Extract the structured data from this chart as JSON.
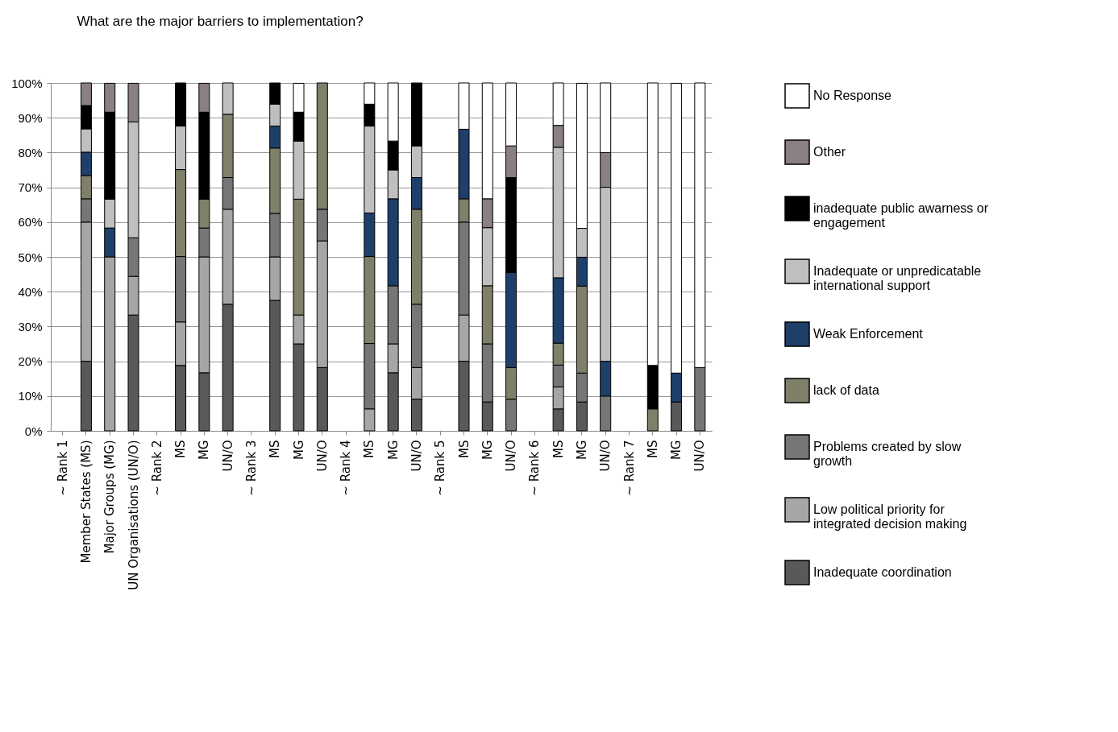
{
  "chart_data": {
    "type": "bar",
    "stacked": true,
    "title": "What are the major barriers to implementation?",
    "categories": [
      "~ Rank 1",
      "Member States (MS)",
      "Major Groups (MG)",
      "UN Organisations (UN/O)",
      "~ Rank 2",
      "MS",
      "MG",
      "UN/O",
      "~ Rank 3",
      "MS",
      "MG",
      "UN/O",
      "~ Rank 4",
      "MS",
      "MG",
      "UN/O",
      "~ Rank 5",
      "MS",
      "MG",
      "UN/O",
      "~ Rank 6",
      "MS",
      "MG",
      "UN/O",
      "~ Rank 7",
      "MS",
      "MG",
      "UN/O"
    ],
    "series": [
      {
        "name": "Inadequate coordination",
        "color": "#595959",
        "values": [
          null,
          20,
          null,
          33.3,
          null,
          18.8,
          16.7,
          36.4,
          null,
          37.5,
          25,
          18.2,
          null,
          null,
          16.7,
          9.1,
          null,
          20,
          8.3,
          null,
          null,
          6.3,
          8.3,
          null,
          null,
          null,
          8.3,
          null
        ]
      },
      {
        "name": "Low political priority for integrated decision making",
        "color": "#a6a6a6",
        "values": [
          null,
          40,
          50,
          11.1,
          null,
          12.5,
          33.3,
          27.3,
          null,
          12.5,
          8.3,
          36.4,
          null,
          6.3,
          8.3,
          9.1,
          null,
          13.3,
          null,
          null,
          null,
          6.3,
          null,
          null,
          null,
          null,
          null,
          null
        ]
      },
      {
        "name": "Problems created by slow growth",
        "color": "#767676",
        "values": [
          null,
          6.7,
          null,
          11.1,
          null,
          18.8,
          8.3,
          9.1,
          null,
          12.5,
          null,
          9.1,
          null,
          18.8,
          16.7,
          18.2,
          null,
          26.7,
          16.7,
          9.1,
          null,
          6.3,
          8.3,
          10,
          null,
          null,
          null,
          18.2
        ]
      },
      {
        "name": "lack of data",
        "color": "#7f7f6a",
        "values": [
          null,
          6.7,
          null,
          null,
          null,
          25,
          8.3,
          18.2,
          null,
          18.8,
          33.3,
          36.3,
          null,
          25,
          null,
          27.3,
          null,
          6.7,
          16.7,
          9.1,
          null,
          6.3,
          25,
          null,
          null,
          6.3,
          null,
          null
        ]
      },
      {
        "name": "Weak Enforcement",
        "color": "#1f3f6b",
        "values": [
          null,
          6.7,
          8.3,
          null,
          null,
          null,
          null,
          null,
          null,
          6.3,
          null,
          null,
          null,
          12.5,
          25,
          9.1,
          null,
          20,
          null,
          27.3,
          null,
          18.8,
          8.3,
          10,
          null,
          null,
          8.3,
          null
        ]
      },
      {
        "name": "Inadequate or unpredicatable international support",
        "color": "#bfbfbf",
        "values": [
          null,
          6.7,
          8.3,
          33.3,
          null,
          12.5,
          null,
          9.0,
          null,
          6.3,
          16.7,
          null,
          null,
          25,
          8.3,
          9.1,
          null,
          null,
          16.7,
          null,
          null,
          37.5,
          8.3,
          50,
          null,
          null,
          null,
          null
        ]
      },
      {
        "name": "inadequate public awarness or engagement",
        "color": "#000000",
        "values": [
          null,
          6.7,
          25,
          null,
          null,
          12.4,
          25,
          null,
          null,
          6.1,
          8.3,
          null,
          null,
          6.3,
          8.3,
          18.1,
          null,
          null,
          null,
          27.3,
          null,
          null,
          null,
          null,
          null,
          12.5,
          null,
          null
        ]
      },
      {
        "name": "Other",
        "color": "#8a7f84",
        "values": [
          null,
          6.5,
          8.3,
          11.1,
          null,
          null,
          8.3,
          null,
          null,
          null,
          null,
          null,
          null,
          null,
          null,
          null,
          null,
          null,
          8.3,
          9.1,
          null,
          6.3,
          null,
          10,
          null,
          null,
          null,
          null
        ]
      },
      {
        "name": "No Response",
        "color": "#ffffff",
        "values": [
          null,
          null,
          null,
          null,
          null,
          null,
          null,
          null,
          null,
          null,
          8.3,
          null,
          null,
          6.1,
          16.7,
          null,
          null,
          13.3,
          33.3,
          18.1,
          null,
          12.2,
          41.7,
          20,
          null,
          81.2,
          83.3,
          81.8
        ]
      }
    ],
    "ylim": [
      0,
      100
    ],
    "yticks": [
      {
        "value": 0,
        "label": "0%"
      },
      {
        "value": 10,
        "label": "10%"
      },
      {
        "value": 20,
        "label": "20%"
      },
      {
        "value": 30,
        "label": "30%"
      },
      {
        "value": 40,
        "label": "40%"
      },
      {
        "value": 50,
        "label": "50%"
      },
      {
        "value": 60,
        "label": "60%"
      },
      {
        "value": 70,
        "label": "70%"
      },
      {
        "value": 80,
        "label": "80%"
      },
      {
        "value": 90,
        "label": "90%"
      },
      {
        "value": 100,
        "label": "100%"
      }
    ],
    "grid": "y",
    "legend": "right"
  }
}
